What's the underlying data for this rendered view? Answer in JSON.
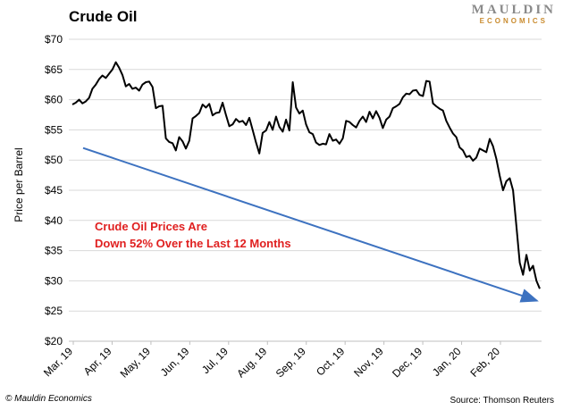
{
  "chart_data": {
    "type": "line",
    "title": "Crude Oil",
    "ylabel": "Price per Barrel",
    "xlabel": "",
    "ylim": [
      20,
      70
    ],
    "y_ticks": [
      "$20",
      "$25",
      "$30",
      "$35",
      "$40",
      "$45",
      "$50",
      "$55",
      "$60",
      "$65",
      "$70"
    ],
    "x_ticks": [
      "Mar, 19",
      "Apr, 19",
      "May, 19",
      "Jun, 19",
      "Jul, 19",
      "Aug, 19",
      "Sep, 19",
      "Oct, 19",
      "Nov, 19",
      "Dec, 19",
      "Jan, 20",
      "Feb, 20"
    ],
    "grid": true,
    "series": [
      {
        "color": "#000000",
        "values": [
          59.2,
          59.5,
          60.0,
          59.4,
          59.7,
          60.3,
          61.8,
          62.5,
          63.4,
          64.0,
          63.6,
          64.3,
          65.0,
          66.2,
          65.3,
          64.1,
          62.2,
          62.6,
          61.8,
          62.0,
          61.5,
          62.5,
          62.9,
          63.0,
          62.1,
          58.6,
          58.9,
          59.0,
          53.6,
          53.0,
          52.8,
          51.6,
          53.8,
          53.1,
          51.9,
          53.2,
          56.9,
          57.3,
          57.8,
          59.2,
          58.7,
          59.3,
          57.4,
          57.8,
          57.9,
          59.5,
          57.5,
          55.6,
          55.9,
          56.8,
          56.3,
          56.5,
          55.8,
          57.0,
          55.0,
          52.9,
          51.1,
          54.5,
          54.9,
          56.3,
          55.0,
          57.2,
          55.5,
          54.7,
          56.7,
          54.9,
          62.9,
          58.7,
          57.7,
          58.2,
          55.9,
          54.6,
          54.3,
          52.9,
          52.5,
          52.7,
          52.6,
          54.3,
          53.2,
          53.4,
          52.7,
          53.6,
          56.5,
          56.3,
          55.8,
          55.4,
          56.5,
          57.2,
          56.3,
          58.0,
          56.9,
          58.1,
          57.0,
          55.3,
          56.7,
          57.2,
          58.6,
          58.9,
          59.3,
          60.4,
          61.0,
          60.9,
          61.5,
          61.6,
          60.8,
          60.6,
          63.1,
          63.0,
          59.4,
          58.9,
          58.5,
          58.2,
          56.5,
          55.4,
          54.4,
          53.8,
          52.1,
          51.6,
          50.5,
          50.7,
          49.9,
          50.4,
          51.9,
          51.6,
          51.3,
          53.5,
          52.3,
          50.2,
          47.4,
          45.0,
          46.5,
          47.0,
          45.0,
          39.0,
          33.0,
          31.0,
          34.3,
          31.7,
          32.5,
          30.0,
          28.7
        ]
      }
    ],
    "trendline": {
      "color": "#3d72c0",
      "start_value": 52,
      "end_value": 26.7
    },
    "annotation_lines": [
      "Crude Oil Prices Are",
      "Down 52% Over the Last 12 Months"
    ],
    "annotation_color": "#e02020"
  },
  "logo": {
    "line1": "MAULDIN",
    "line2": "ECONOMICS"
  },
  "footer": {
    "left": "© Mauldin Economics",
    "right": "Source: Thomson Reuters"
  }
}
